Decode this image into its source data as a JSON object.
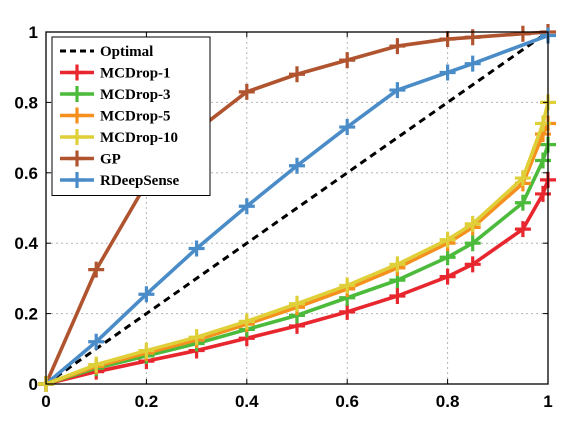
{
  "chart_data": {
    "type": "line",
    "title": "",
    "xlabel": "",
    "ylabel": "",
    "xlim": [
      0,
      1
    ],
    "ylim": [
      0,
      1
    ],
    "grid": true,
    "legend_position": "top-left",
    "x_ticks": [
      0,
      0.2,
      0.4,
      0.6,
      0.8,
      1
    ],
    "x_tick_labels": [
      "0",
      "0.2",
      "0.4",
      "0.6",
      "0.8",
      "1"
    ],
    "y_ticks": [
      0,
      0.2,
      0.4,
      0.6,
      0.8,
      1
    ],
    "y_tick_labels": [
      "0",
      "0.2",
      "0.4",
      "0.6",
      "0.8",
      "1"
    ],
    "series": [
      {
        "name": "Optimal",
        "color": "#000000",
        "style": "dashed",
        "marker": "none",
        "x": [
          0,
          1
        ],
        "y": [
          0,
          1
        ]
      },
      {
        "name": "MCDrop-1",
        "color": "#e8262e",
        "style": "solid",
        "marker": "plus",
        "x": [
          0,
          0.1,
          0.2,
          0.3,
          0.4,
          0.5,
          0.6,
          0.7,
          0.8,
          0.85,
          0.95,
          0.99,
          1.0
        ],
        "y": [
          0,
          0.035,
          0.065,
          0.095,
          0.13,
          0.165,
          0.205,
          0.25,
          0.305,
          0.34,
          0.44,
          0.54,
          0.58
        ]
      },
      {
        "name": "MCDrop-3",
        "color": "#4cbb3c",
        "style": "solid",
        "marker": "plus",
        "x": [
          0,
          0.1,
          0.2,
          0.3,
          0.4,
          0.5,
          0.6,
          0.7,
          0.8,
          0.85,
          0.95,
          0.99,
          1.0
        ],
        "y": [
          0,
          0.045,
          0.08,
          0.115,
          0.155,
          0.195,
          0.245,
          0.295,
          0.36,
          0.4,
          0.515,
          0.635,
          0.68
        ]
      },
      {
        "name": "MCDrop-5",
        "color": "#f5901e",
        "style": "solid",
        "marker": "plus",
        "x": [
          0,
          0.1,
          0.2,
          0.3,
          0.4,
          0.5,
          0.6,
          0.7,
          0.8,
          0.85,
          0.95,
          0.99,
          1.0
        ],
        "y": [
          0,
          0.05,
          0.088,
          0.125,
          0.17,
          0.218,
          0.27,
          0.33,
          0.4,
          0.445,
          0.57,
          0.71,
          0.74
        ]
      },
      {
        "name": "MCDrop-10",
        "color": "#dfd03a",
        "style": "solid",
        "marker": "plus",
        "x": [
          0,
          0.1,
          0.2,
          0.3,
          0.4,
          0.5,
          0.6,
          0.7,
          0.8,
          0.85,
          0.95,
          0.99,
          1.0
        ],
        "y": [
          0,
          0.055,
          0.095,
          0.133,
          0.178,
          0.228,
          0.28,
          0.34,
          0.41,
          0.455,
          0.585,
          0.74,
          0.8
        ]
      },
      {
        "name": "GP",
        "color": "#b0542f",
        "style": "solid",
        "marker": "plus",
        "x": [
          0,
          0.1,
          0.2,
          0.3,
          0.4,
          0.5,
          0.6,
          0.7,
          0.8,
          0.85,
          0.95,
          1.0
        ],
        "y": [
          0,
          0.325,
          0.57,
          0.72,
          0.83,
          0.88,
          0.92,
          0.96,
          0.98,
          0.985,
          0.995,
          1.0
        ]
      },
      {
        "name": "RDeepSense",
        "color": "#4a8cc8",
        "style": "solid",
        "marker": "plus",
        "x": [
          0,
          0.1,
          0.2,
          0.3,
          0.4,
          0.5,
          0.6,
          0.7,
          0.8,
          0.85,
          1.0
        ],
        "y": [
          0,
          0.12,
          0.255,
          0.385,
          0.505,
          0.62,
          0.73,
          0.835,
          0.885,
          0.91,
          0.99
        ]
      }
    ]
  }
}
